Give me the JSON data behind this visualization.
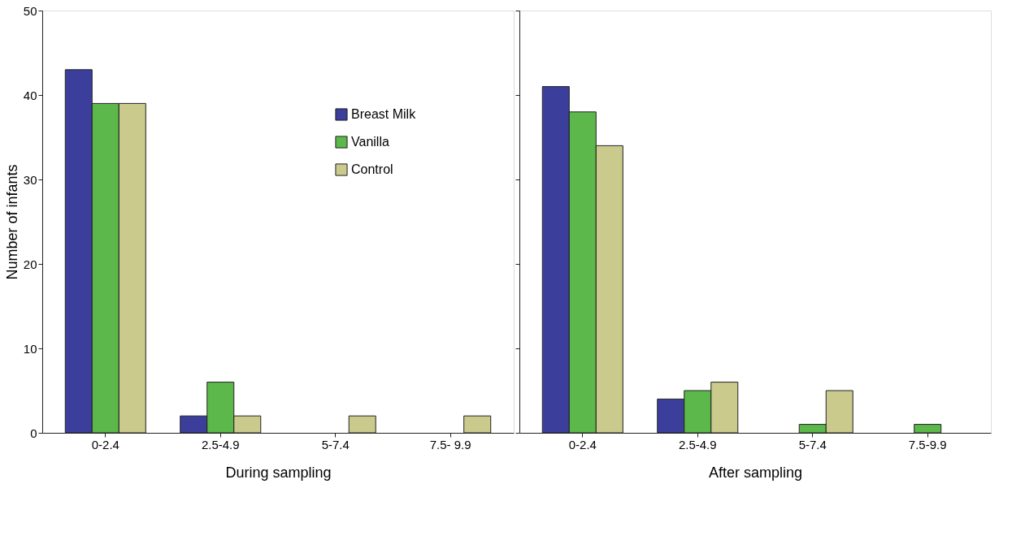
{
  "chart_data": [
    {
      "type": "bar",
      "xlabel": "During sampling",
      "ylabel": "Number of infants",
      "categories": [
        "0-2.4",
        "2.5-4.9",
        "5-7.4",
        "7.5- 9.9"
      ],
      "ylim": [
        0,
        50
      ],
      "yticks": [
        0,
        10,
        20,
        30,
        40,
        50
      ],
      "grid": false,
      "legend": "top right",
      "series": [
        {
          "name": "Breast Milk",
          "color": "#3b3f9b",
          "values": [
            43,
            2,
            0,
            0
          ]
        },
        {
          "name": "Vanilla",
          "color": "#5cb84a",
          "values": [
            39,
            6,
            0,
            0
          ]
        },
        {
          "name": "Control",
          "color": "#c9ca8c",
          "values": [
            39,
            2,
            2,
            2
          ]
        }
      ]
    },
    {
      "type": "bar",
      "xlabel": "After sampling",
      "categories": [
        "0-2.4",
        "2.5-4.9",
        "5-7.4",
        "7.5-9.9"
      ],
      "ylim": [
        0,
        50
      ],
      "yticks": [
        0,
        10,
        20,
        30,
        40,
        50
      ],
      "grid": false,
      "legend": false,
      "tick_labels": "x",
      "series": [
        {
          "name": "Breast Milk",
          "color": "#3b3f9b",
          "values": [
            41,
            4,
            0,
            0
          ]
        },
        {
          "name": "Vanilla",
          "color": "#5cb84a",
          "values": [
            38,
            5,
            1,
            1
          ]
        },
        {
          "name": "Control",
          "color": "#c9ca8c",
          "values": [
            34,
            6,
            5,
            0
          ]
        }
      ]
    }
  ]
}
